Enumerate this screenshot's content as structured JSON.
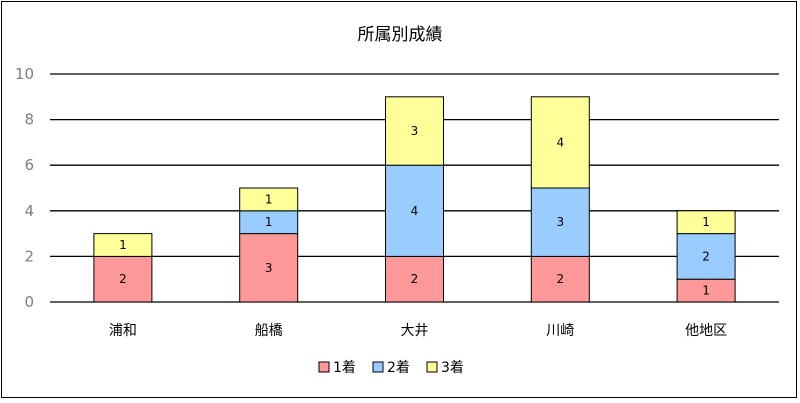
{
  "chart_data": {
    "type": "bar",
    "stacked": true,
    "title": "所属別成績",
    "categories": [
      "浦和",
      "船橋",
      "大井",
      "川崎",
      "他地区"
    ],
    "series": [
      {
        "name": "1着",
        "color": "#ff9999",
        "values": [
          2,
          3,
          2,
          2,
          1
        ]
      },
      {
        "name": "2着",
        "color": "#99ccff",
        "values": [
          0,
          1,
          4,
          3,
          2
        ]
      },
      {
        "name": "3着",
        "color": "#ffff99",
        "values": [
          1,
          1,
          3,
          4,
          1
        ]
      }
    ],
    "ylim": [
      0,
      10
    ],
    "yticks": [
      0,
      2,
      4,
      6,
      8,
      10
    ],
    "grid": true,
    "legend_position": "bottom"
  }
}
